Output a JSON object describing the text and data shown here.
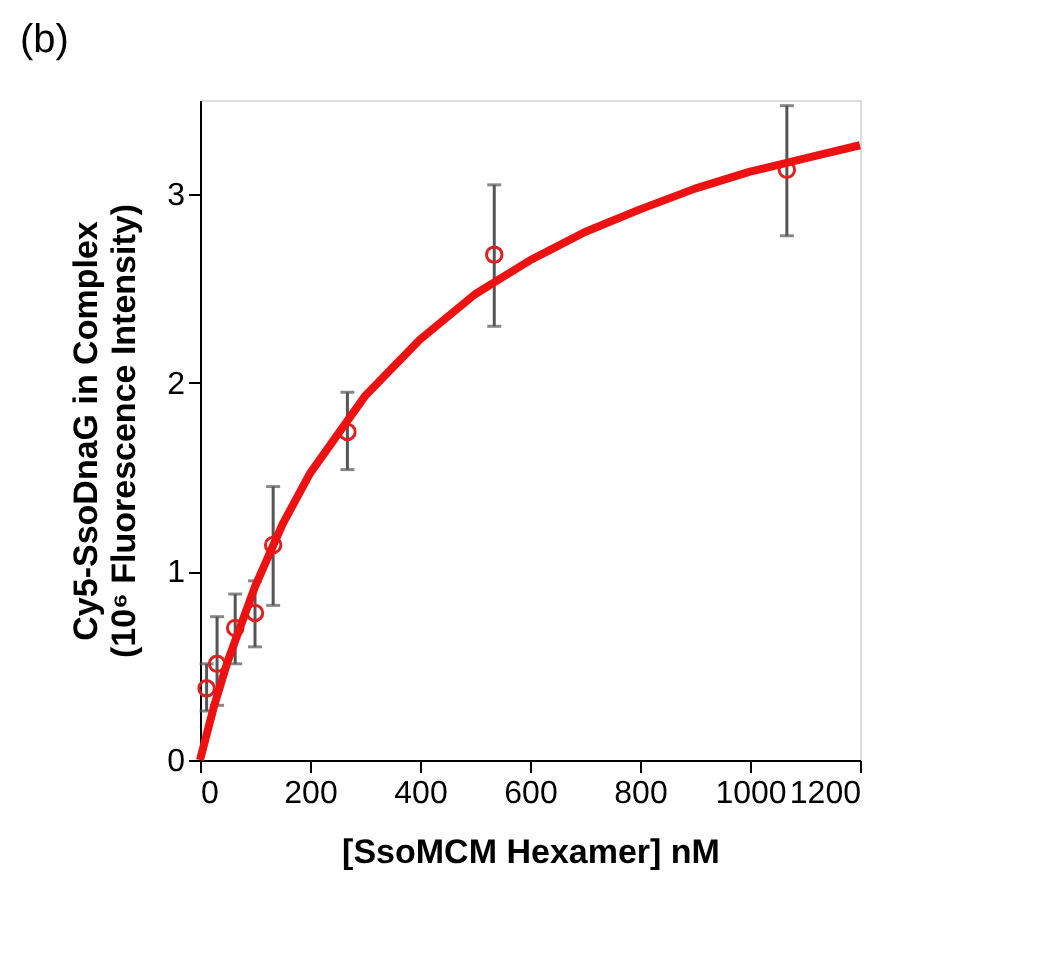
{
  "chart_data": {
    "type": "scatter",
    "title": "(b)",
    "xlabel": "[SsoMCM Hexamer] nM",
    "ylabel": "Cy5-SsoDnaG in Complex\n(10⁶ Fluorescence Intensity)",
    "xlim": [
      0,
      1200
    ],
    "xticks": [
      0,
      200,
      400,
      600,
      800,
      1000,
      1200
    ],
    "ylim": [
      0,
      3.5
    ],
    "yticks": [
      0,
      1,
      2,
      3
    ],
    "grid": false,
    "series": [
      {
        "marker": "circle",
        "color": "#e02020",
        "x": [
          12,
          31,
          64,
          100,
          133,
          268,
          535,
          1067
        ],
        "values": [
          0.38,
          0.51,
          0.7,
          0.78,
          1.14,
          1.74,
          2.68,
          3.13
        ],
        "errors": [
          [
            0.26,
            0.51
          ],
          [
            0.29,
            0.76
          ],
          [
            0.51,
            0.88
          ],
          [
            0.6,
            0.95
          ],
          [
            0.82,
            1.45
          ],
          [
            1.54,
            1.95
          ],
          [
            2.3,
            3.05
          ],
          [
            2.78,
            3.47
          ]
        ]
      },
      {
        "type": "line",
        "color": "#ee1111",
        "x": [
          0,
          25,
          50,
          100,
          150,
          200,
          300,
          400,
          500,
          600,
          700,
          800,
          900,
          1000,
          1100,
          1200
        ],
        "values": [
          0,
          0.28,
          0.52,
          0.92,
          1.25,
          1.52,
          1.93,
          2.23,
          2.47,
          2.65,
          2.8,
          2.92,
          3.03,
          3.12,
          3.19,
          3.26
        ]
      }
    ]
  }
}
